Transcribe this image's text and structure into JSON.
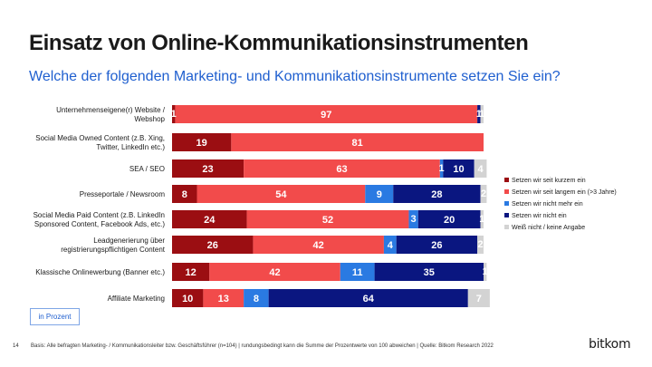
{
  "title": "Einsatz von Online-Kommunikationsinstrumenten",
  "subtitle": "Welche der folgenden Marketing- und Kommunikationsinstrumente setzen Sie ein?",
  "unit_label": "in Prozent",
  "page_number": "14",
  "footnote": "Basis: Alle befragten Marketing- / Kommunikationsleiter bzw. Geschäftsführer (n=104) | rundungsbedingt kann die Summe der Prozentwerte von 100 abweichen | Quelle: Bitkom Research 2022",
  "brand": "bitkom",
  "colors": {
    "kurzem": "#9b0e12",
    "langem": "#f24b4b",
    "nicht_mehr": "#2a7ae2",
    "nicht": "#0a1680",
    "weiss_nicht": "#d3d3d3",
    "title": "#1a1a1a",
    "subtitle": "#1f5fcf"
  },
  "chart_data": {
    "type": "bar",
    "orientation": "horizontal",
    "stacked": true,
    "xlim": [
      0,
      100
    ],
    "categories": [
      [
        "Unternehmenseigene(r) Website /",
        "Webshop"
      ],
      [
        "Social Media Owned Content (z.B. Xing,",
        "Twitter, LinkedIn etc.)"
      ],
      [
        "SEA / SEO"
      ],
      [
        "Presseportale / Newsroom"
      ],
      [
        "Social Media Paid Content (z.B. LinkedIn",
        "Sponsored Content, Facebook Ads, etc.)"
      ],
      [
        "Leadgenerierung über",
        "registrierungspflichtigen Content"
      ],
      [
        "Klassische Onlinewerbung (Banner etc.)"
      ],
      [
        "Affiliate Marketing"
      ]
    ],
    "series": [
      {
        "name": "Setzen wir seit kurzem ein",
        "color_key": "kurzem",
        "values": [
          1,
          19,
          23,
          8,
          24,
          26,
          12,
          10
        ]
      },
      {
        "name": "Setzen wir seit langem ein (>3 Jahre)",
        "color_key": "langem",
        "values": [
          97,
          81,
          63,
          54,
          52,
          42,
          42,
          13
        ]
      },
      {
        "name": "Setzen wir nicht mehr ein",
        "color_key": "nicht_mehr",
        "values": [
          0,
          0,
          1,
          9,
          3,
          4,
          11,
          8
        ]
      },
      {
        "name": "Setzen wir nicht ein",
        "color_key": "nicht",
        "values": [
          1,
          0,
          10,
          28,
          20,
          26,
          35,
          64
        ]
      },
      {
        "name": "Weiß nicht / keine Angabe",
        "color_key": "weiss_nicht",
        "values": [
          1,
          0,
          4,
          2,
          1,
          2,
          1,
          7
        ]
      }
    ],
    "legend": "right"
  }
}
